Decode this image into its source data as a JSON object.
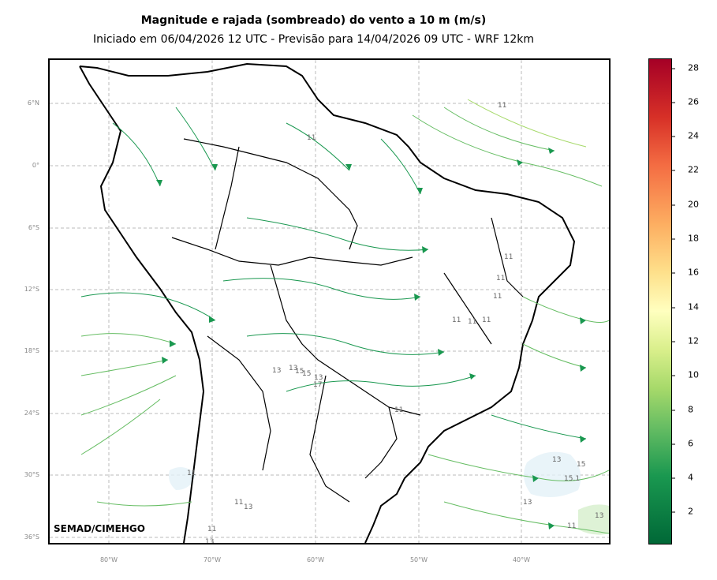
{
  "header": {
    "title": "Magnitude e rajada (sombreado) do vento a 10 m (m/s)",
    "subtitle": "Iniciado em 06/04/2026 12 UTC - Previsão para 14/04/2026 09 UTC - WRF 12km"
  },
  "axes": {
    "lat_labels": [
      "6°N",
      "0°",
      "6°S",
      "12°S",
      "18°S",
      "24°S",
      "30°S",
      "36°S"
    ],
    "lon_labels": [
      "80°W",
      "70°W",
      "60°W",
      "50°W",
      "40°W"
    ]
  },
  "colorbar": {
    "ticks": [
      "2",
      "4",
      "6",
      "8",
      "10",
      "12",
      "14",
      "16",
      "18",
      "20",
      "22",
      "24",
      "26",
      "28"
    ],
    "colors": [
      "#006837",
      "#1a9850",
      "#66bd63",
      "#a6d96a",
      "#d9ef8b",
      "#ffffbf",
      "#fee08b",
      "#fdae61",
      "#f46d43",
      "#d73027",
      "#a50026"
    ]
  },
  "contour_labels": [
    "11",
    "11",
    "11",
    "11",
    "11",
    "11",
    "11",
    "11",
    "13",
    "13",
    "15",
    "15",
    "13",
    "17",
    "11",
    "11",
    "11",
    "13",
    "11",
    "13",
    "13",
    "15",
    "15.1",
    "13",
    "13",
    "11"
  ],
  "credit": "SEMAD/CIMEHGO"
}
